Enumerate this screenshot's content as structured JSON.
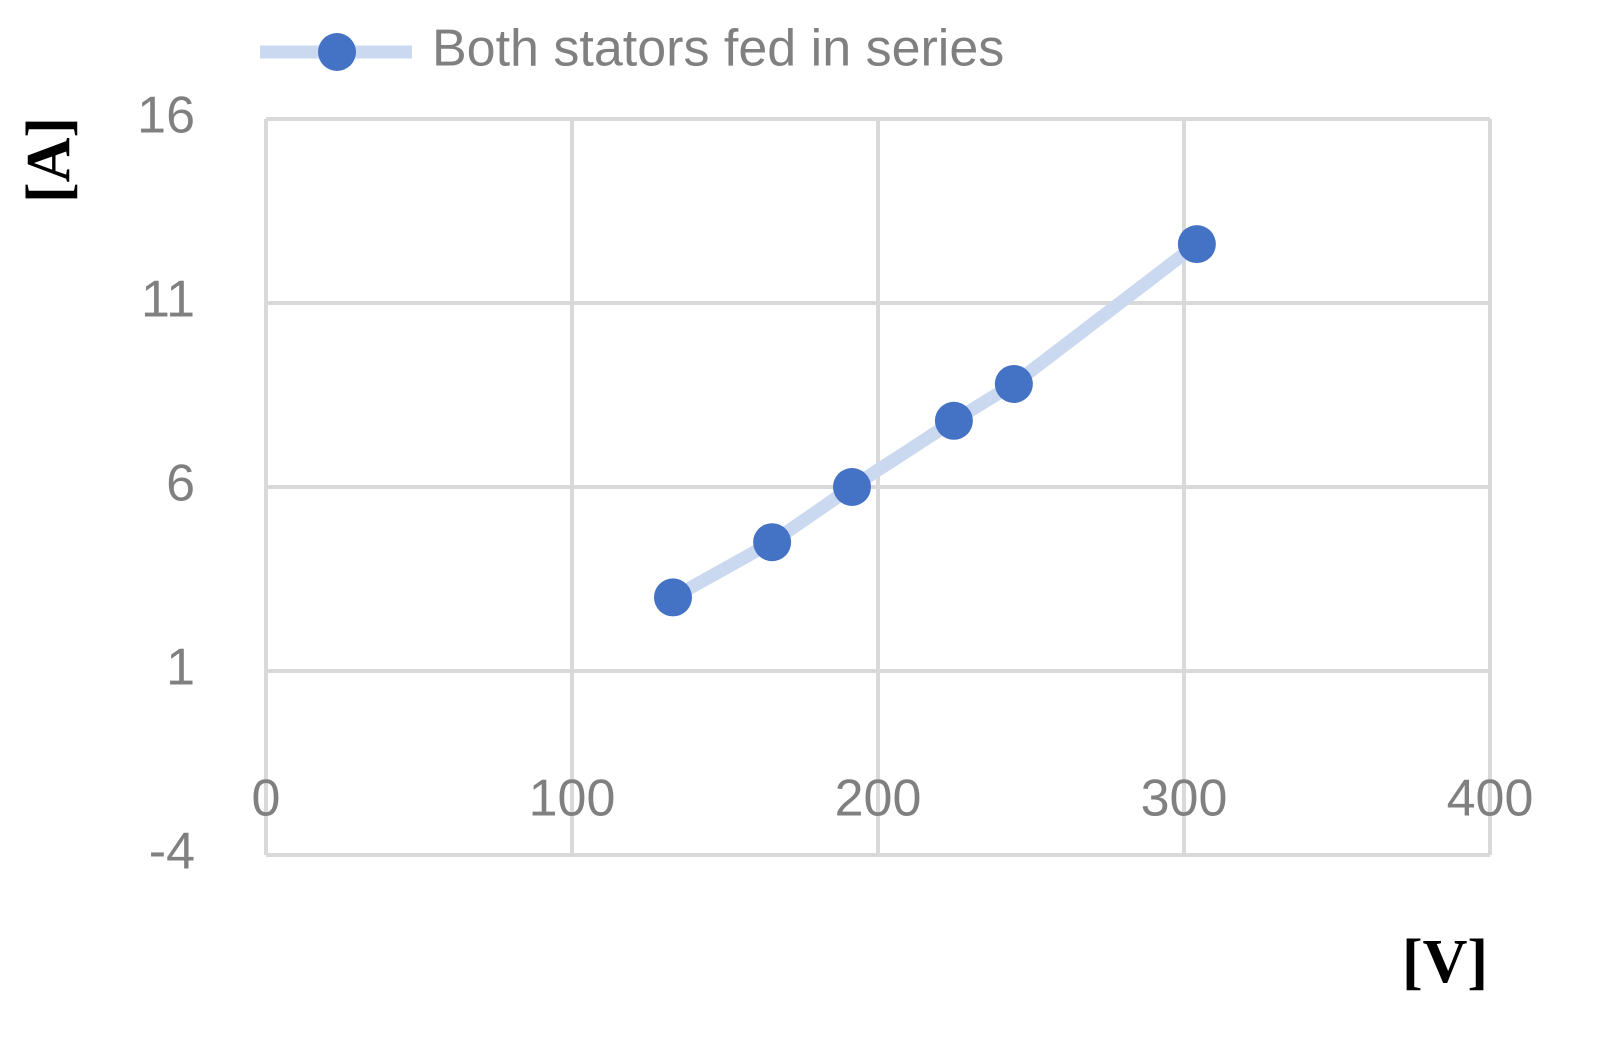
{
  "chart_data": {
    "type": "line",
    "x_label": "[V]",
    "y_label": "[A]",
    "series": [
      {
        "name": "Both stators fed in series",
        "color": "#4472c4",
        "line_color": "#cad8f0",
        "x": [
          133,
          165.4,
          191.5,
          224.8,
          244.4,
          304.2
        ],
        "values": [
          3.0,
          4.5,
          6.0,
          7.8,
          8.8,
          12.6
        ]
      }
    ],
    "xlim": [
      0,
      400
    ],
    "xticks": [
      0,
      100,
      200,
      300,
      400
    ],
    "ylim": [
      -4,
      16
    ],
    "yticks": [
      -4,
      1,
      6,
      11,
      16
    ],
    "grid": true
  }
}
